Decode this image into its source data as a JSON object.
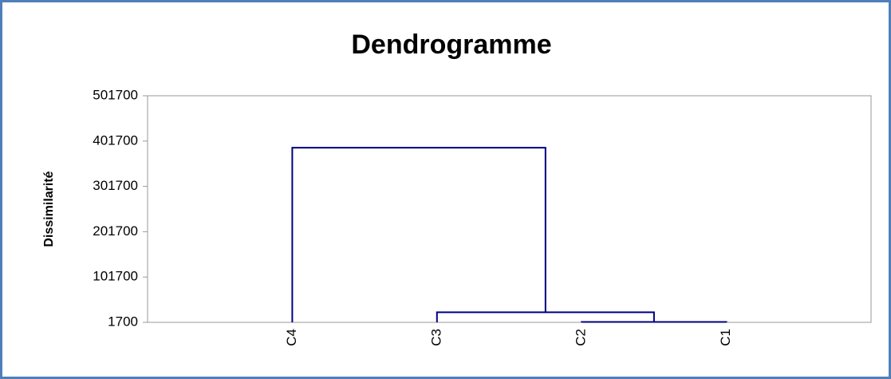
{
  "chart_data": {
    "type": "dendrogram",
    "title": "Dendrogramme",
    "y_label": "Dissimilarité",
    "categories": [
      "C4",
      "C3",
      "C2",
      "C1"
    ],
    "merges": [
      {
        "children": [
          2,
          3
        ],
        "height": 2500
      },
      {
        "children": [
          1,
          4
        ],
        "height": 24000
      },
      {
        "children": [
          0,
          5
        ],
        "height": 387000
      }
    ],
    "color": "#000080",
    "ylim": [
      1700,
      501700
    ],
    "yticks": [
      1700,
      101700,
      201700,
      301700,
      401700,
      501700
    ]
  }
}
